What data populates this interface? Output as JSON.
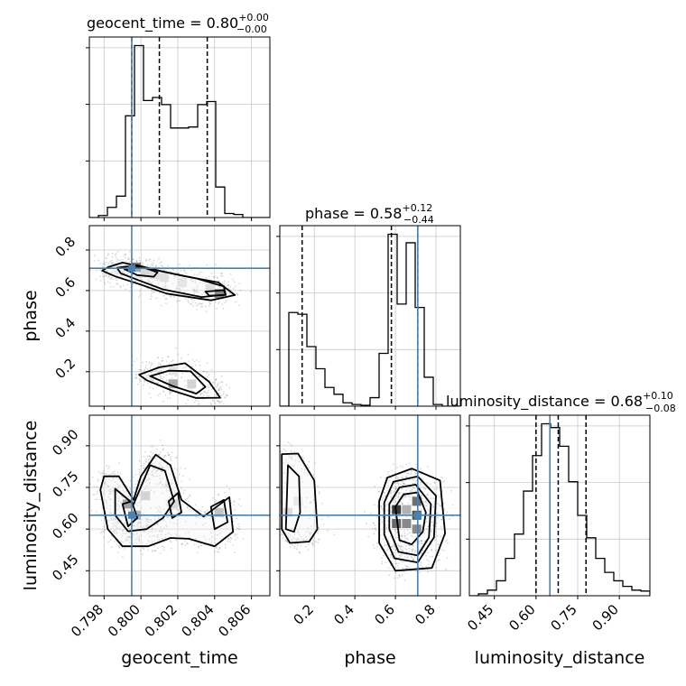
{
  "chart_data": {
    "type": "corner",
    "parameters": [
      "geocent_time",
      "phase",
      "luminosity_distance"
    ],
    "truth": {
      "geocent_time": 0.7995,
      "phase": 0.71,
      "luminosity_distance": 0.65,
      "color": "#4682b4"
    },
    "grid": true,
    "line_color": "#000000",
    "point_color": "#808080",
    "panels": {
      "geocent_time": {
        "title_main": "geocent_time = 0.80",
        "title_sup": "+0.00",
        "title_sub": "−0.00",
        "range": [
          0.7972,
          0.807
        ],
        "ticks": [
          0.798,
          0.8,
          0.802,
          0.804,
          0.806
        ],
        "tick_labels": [
          "0.798",
          "0.800",
          "0.802",
          "0.804",
          "0.806"
        ],
        "quantiles": [
          0.7995,
          0.801,
          0.8036
        ],
        "bin_edges": [
          0.7972,
          0.79769,
          0.79818,
          0.79867,
          0.79916,
          0.79965,
          0.80014,
          0.80063,
          0.80112,
          0.80161,
          0.8021,
          0.80259,
          0.80308,
          0.80357,
          0.80406,
          0.80455,
          0.80504,
          0.80553,
          0.80602,
          0.80651,
          0.807
        ],
        "counts": [
          0,
          2,
          10,
          21,
          100,
          169,
          115,
          118,
          111,
          88,
          88,
          89,
          111,
          114,
          30,
          4,
          3,
          0,
          0,
          0
        ]
      },
      "phase": {
        "title_main": "phase = 0.58",
        "title_sup": "+0.12",
        "title_sub": "−0.44",
        "range": [
          0.03,
          0.92
        ],
        "ticks": [
          0.2,
          0.4,
          0.6,
          0.8
        ],
        "tick_labels": [
          "0.2",
          "0.4",
          "0.6",
          "0.8"
        ],
        "quantiles": [
          0.14,
          0.58,
          0.71
        ],
        "bin_edges": [
          0.03,
          0.0745,
          0.119,
          0.1635,
          0.208,
          0.2525,
          0.297,
          0.3415,
          0.386,
          0.4305,
          0.475,
          0.5195,
          0.564,
          0.6085,
          0.653,
          0.6975,
          0.742,
          0.7865,
          0.831,
          0.8755,
          0.92
        ],
        "counts": [
          0,
          110,
          108,
          70,
          44,
          22,
          14,
          4,
          2,
          1,
          10,
          62,
          202,
          120,
          192,
          116,
          34,
          2,
          0,
          0
        ]
      },
      "luminosity_distance": {
        "title_main": "luminosity_distance = 0.68",
        "title_sup": "+0.10",
        "title_sub": "−0.08",
        "range": [
          0.36,
          1.01
        ],
        "ticks": [
          0.45,
          0.6,
          0.75,
          0.9
        ],
        "tick_labels": [
          "0.45",
          "0.60",
          "0.75",
          "0.90"
        ],
        "quantiles": [
          0.6,
          0.68,
          0.78
        ],
        "bin_edges": [
          0.36,
          0.3925,
          0.425,
          0.4575,
          0.49,
          0.5225,
          0.555,
          0.5875,
          0.62,
          0.6525,
          0.685,
          0.7175,
          0.75,
          0.7825,
          0.815,
          0.8475,
          0.88,
          0.9125,
          0.945,
          0.9775,
          1.01
        ],
        "counts": [
          0,
          2,
          6,
          16,
          40,
          66,
          112,
          150,
          184,
          180,
          160,
          122,
          86,
          62,
          40,
          25,
          16,
          10,
          6,
          5
        ]
      }
    },
    "scatter": {
      "phase_vs_geocent_time": {
        "contours": [
          [
            [
              0.7982,
              0.715
            ],
            [
              0.799,
              0.738
            ],
            [
              0.8003,
              0.712
            ],
            [
              0.8023,
              0.672
            ],
            [
              0.8042,
              0.64
            ],
            [
              0.8051,
              0.578
            ],
            [
              0.8038,
              0.552
            ],
            [
              0.8014,
              0.585
            ],
            [
              0.7999,
              0.632
            ],
            [
              0.7986,
              0.67
            ],
            [
              0.7979,
              0.698
            ]
          ],
          [
            [
              0.7987,
              0.712
            ],
            [
              0.7998,
              0.725
            ],
            [
              0.801,
              0.697
            ],
            [
              0.803,
              0.66
            ],
            [
              0.8045,
              0.62
            ],
            [
              0.8046,
              0.58
            ],
            [
              0.8033,
              0.568
            ],
            [
              0.8012,
              0.606
            ],
            [
              0.7999,
              0.65
            ],
            [
              0.7989,
              0.685
            ]
          ],
          [
            [
              0.7991,
              0.706
            ],
            [
              0.8,
              0.718
            ],
            [
              0.8009,
              0.69
            ],
            [
              0.8007,
              0.668
            ],
            [
              0.7998,
              0.676
            ]
          ],
          [
            [
              0.8035,
              0.595
            ],
            [
              0.8045,
              0.602
            ],
            [
              0.8046,
              0.578
            ],
            [
              0.8037,
              0.575
            ]
          ],
          [
            [
              0.7999,
              0.185
            ],
            [
              0.801,
              0.222
            ],
            [
              0.8024,
              0.242
            ],
            [
              0.8037,
              0.15
            ],
            [
              0.8043,
              0.072
            ],
            [
              0.803,
              0.07
            ],
            [
              0.8016,
              0.11
            ],
            [
              0.8003,
              0.158
            ]
          ],
          [
            [
              0.8005,
              0.178
            ],
            [
              0.8015,
              0.205
            ],
            [
              0.8027,
              0.202
            ],
            [
              0.8035,
              0.125
            ],
            [
              0.803,
              0.092
            ],
            [
              0.8017,
              0.13
            ]
          ]
        ],
        "cells": [
          {
            "x": 0.79975,
            "y": 0.715,
            "shade": "#7a7a7a"
          },
          {
            "x": 0.80025,
            "y": 0.695,
            "shade": "#c8c8c8"
          },
          {
            "x": 0.80075,
            "y": 0.68,
            "shade": "#d2d2d2"
          },
          {
            "x": 0.80125,
            "y": 0.665,
            "shade": "#d8d8d8"
          },
          {
            "x": 0.80225,
            "y": 0.64,
            "shade": "#dedede"
          },
          {
            "x": 0.80375,
            "y": 0.61,
            "shade": "#d4d4d4"
          },
          {
            "x": 0.80425,
            "y": 0.585,
            "shade": "#505050"
          },
          {
            "x": 0.80175,
            "y": 0.14,
            "shade": "#aaaaaa"
          },
          {
            "x": 0.80175,
            "y": 0.205,
            "shade": "#e4e4e4"
          },
          {
            "x": 0.80275,
            "y": 0.14,
            "shade": "#d4d4d4"
          }
        ]
      },
      "luminosity_distance_vs_geocent_time": {
        "contours": [
          [
            [
              0.798,
              0.79
            ],
            [
              0.7988,
              0.79
            ],
            [
              0.7996,
              0.705
            ],
            [
              0.8,
              0.79
            ],
            [
              0.8008,
              0.868
            ],
            [
              0.8016,
              0.83
            ],
            [
              0.8022,
              0.705
            ],
            [
              0.8034,
              0.645
            ],
            [
              0.8048,
              0.715
            ],
            [
              0.805,
              0.59
            ],
            [
              0.804,
              0.538
            ],
            [
              0.8026,
              0.565
            ],
            [
              0.8016,
              0.568
            ],
            [
              0.8004,
              0.538
            ],
            [
              0.799,
              0.538
            ],
            [
              0.7982,
              0.6
            ],
            [
              0.7978,
              0.742
            ]
          ],
          [
            [
              0.7986,
              0.745
            ],
            [
              0.7996,
              0.69
            ],
            [
              0.8005,
              0.83
            ],
            [
              0.8013,
              0.81
            ],
            [
              0.8018,
              0.7
            ],
            [
              0.8012,
              0.64
            ],
            [
              0.8003,
              0.6
            ],
            [
              0.7993,
              0.592
            ],
            [
              0.7986,
              0.65
            ]
          ],
          [
            [
              0.799,
              0.69
            ],
            [
              0.7995,
              0.7
            ],
            [
              0.7998,
              0.64
            ],
            [
              0.7993,
              0.61
            ]
          ],
          [
            [
              0.8015,
              0.7
            ],
            [
              0.802,
              0.73
            ],
            [
              0.8022,
              0.66
            ],
            [
              0.8017,
              0.64
            ]
          ],
          [
            [
              0.8038,
              0.68
            ],
            [
              0.8045,
              0.705
            ],
            [
              0.8047,
              0.625
            ],
            [
              0.804,
              0.6
            ]
          ]
        ],
        "cells": [
          {
            "x": 0.79925,
            "y": 0.69,
            "shade": "#777777"
          },
          {
            "x": 0.79975,
            "y": 0.65,
            "shade": "#909090"
          },
          {
            "x": 0.80025,
            "y": 0.72,
            "shade": "#c4c4c4"
          },
          {
            "x": 0.80175,
            "y": 0.69,
            "shade": "#cccccc"
          },
          {
            "x": 0.80425,
            "y": 0.66,
            "shade": "#aaaaaa"
          }
        ]
      },
      "luminosity_distance_vs_phase": {
        "contours": [
          [
            [
              0.04,
              0.87
            ],
            [
              0.12,
              0.872
            ],
            [
              0.2,
              0.775
            ],
            [
              0.215,
              0.6
            ],
            [
              0.175,
              0.555
            ],
            [
              0.08,
              0.55
            ],
            [
              0.04,
              0.6
            ]
          ],
          [
            [
              0.07,
              0.83
            ],
            [
              0.125,
              0.79
            ],
            [
              0.13,
              0.66
            ],
            [
              0.1,
              0.59
            ],
            [
              0.06,
              0.6
            ]
          ],
          [
            [
              0.52,
              0.7
            ],
            [
              0.56,
              0.785
            ],
            [
              0.68,
              0.818
            ],
            [
              0.82,
              0.775
            ],
            [
              0.845,
              0.585
            ],
            [
              0.78,
              0.46
            ],
            [
              0.6,
              0.45
            ],
            [
              0.52,
              0.55
            ]
          ],
          [
            [
              0.545,
              0.695
            ],
            [
              0.59,
              0.77
            ],
            [
              0.71,
              0.79
            ],
            [
              0.8,
              0.72
            ],
            [
              0.79,
              0.57
            ],
            [
              0.71,
              0.48
            ],
            [
              0.595,
              0.495
            ],
            [
              0.545,
              0.58
            ]
          ],
          [
            [
              0.57,
              0.69
            ],
            [
              0.62,
              0.75
            ],
            [
              0.7,
              0.76
            ],
            [
              0.775,
              0.69
            ],
            [
              0.765,
              0.57
            ],
            [
              0.71,
              0.505
            ],
            [
              0.615,
              0.518
            ],
            [
              0.57,
              0.6
            ]
          ],
          [
            [
              0.6,
              0.68
            ],
            [
              0.64,
              0.725
            ],
            [
              0.71,
              0.732
            ],
            [
              0.75,
              0.66
            ],
            [
              0.735,
              0.59
            ],
            [
              0.68,
              0.545
            ],
            [
              0.62,
              0.56
            ]
          ]
        ],
        "cells": [
          {
            "x": 0.07,
            "y": 0.66,
            "shade": "#cfcfcf"
          },
          {
            "x": 0.12,
            "y": 0.7,
            "shade": "#e2e2e2"
          },
          {
            "x": 0.605,
            "y": 0.67,
            "shade": "#3a3a3a"
          },
          {
            "x": 0.605,
            "y": 0.62,
            "shade": "#686868"
          },
          {
            "x": 0.655,
            "y": 0.67,
            "shade": "#b0b0b0"
          },
          {
            "x": 0.655,
            "y": 0.62,
            "shade": "#888888"
          },
          {
            "x": 0.705,
            "y": 0.7,
            "shade": "#707070"
          },
          {
            "x": 0.705,
            "y": 0.65,
            "shade": "#505050"
          },
          {
            "x": 0.705,
            "y": 0.6,
            "shade": "#8a8a8a"
          }
        ]
      }
    }
  }
}
